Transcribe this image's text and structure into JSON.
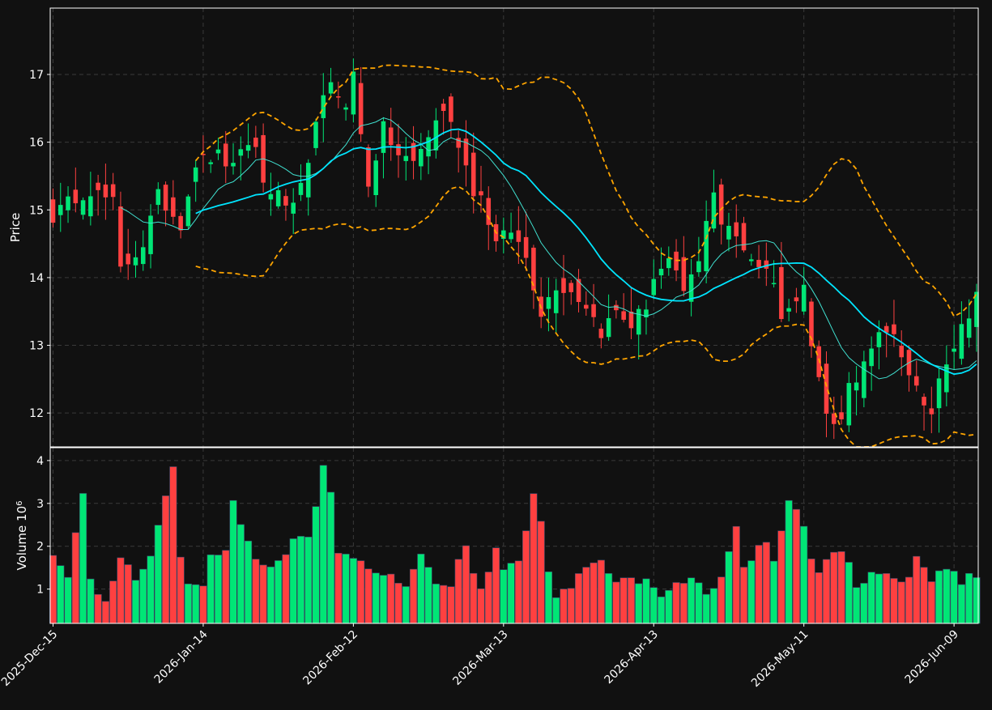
{
  "chart_data": {
    "type": "candlestick",
    "style": {
      "background": "#111111",
      "up_color": "#00e676",
      "down_color": "#ff4040",
      "grid_color": "#3a3a3a",
      "bollinger_color": "#ffa500",
      "ma_fast_color": "#40e0d0",
      "ma_slow_color": "#00e5ff",
      "grid": true
    },
    "price_panel": {
      "ylabel": "Price",
      "ylim": [
        11.5,
        17.98
      ],
      "yticks": [
        12,
        13,
        14,
        15,
        16,
        17
      ]
    },
    "volume_panel": {
      "ylabel": "Volume",
      "ylabel_exponent": "10",
      "ylabel_exponent_power": "6",
      "ylim": [
        0.2,
        4.3
      ],
      "yticks": [
        1,
        2,
        3,
        4
      ]
    },
    "xtick_labels": [
      "2025-Dec-15",
      "2026-Jan-14",
      "2026-Feb-12",
      "2026-Mar-13",
      "2026-Apr-13",
      "2026-May-11",
      "2026-Jun-09"
    ],
    "xtick_indices": [
      0,
      20,
      40,
      60,
      80,
      100,
      120
    ],
    "n_bars": 124,
    "close_anchors": [
      [
        0,
        14.9
      ],
      [
        3,
        15.2
      ],
      [
        5,
        15.3
      ],
      [
        8,
        15.1
      ],
      [
        9,
        14.1
      ],
      [
        12,
        14.5
      ],
      [
        14,
        15.2
      ],
      [
        17,
        14.8
      ],
      [
        19,
        15.7
      ],
      [
        22,
        15.8
      ],
      [
        24,
        15.6
      ],
      [
        26,
        16.0
      ],
      [
        27,
        15.9
      ],
      [
        28,
        15.4
      ],
      [
        30,
        15.2
      ],
      [
        32,
        15.0
      ],
      [
        34,
        15.6
      ],
      [
        35,
        16.4
      ],
      [
        37,
        16.8
      ],
      [
        39,
        16.6
      ],
      [
        40,
        17.0
      ],
      [
        41,
        16.1
      ],
      [
        42,
        15.4
      ],
      [
        44,
        16.2
      ],
      [
        46,
        15.8
      ],
      [
        48,
        15.7
      ],
      [
        50,
        16.1
      ],
      [
        52,
        16.5
      ],
      [
        54,
        16.0
      ],
      [
        56,
        15.3
      ],
      [
        57,
        15.2
      ],
      [
        59,
        14.5
      ],
      [
        61,
        14.7
      ],
      [
        63,
        14.3
      ],
      [
        65,
        13.5
      ],
      [
        67,
        13.9
      ],
      [
        69,
        13.8
      ],
      [
        71,
        13.6
      ],
      [
        73,
        13.2
      ],
      [
        75,
        13.5
      ],
      [
        77,
        13.3
      ],
      [
        79,
        13.6
      ],
      [
        80,
        14.0
      ],
      [
        82,
        14.2
      ],
      [
        84,
        13.8
      ],
      [
        86,
        14.2
      ],
      [
        87,
        14.9
      ],
      [
        88,
        15.3
      ],
      [
        89,
        14.8
      ],
      [
        91,
        14.6
      ],
      [
        93,
        14.3
      ],
      [
        95,
        14.1
      ],
      [
        96,
        14.0
      ],
      [
        97,
        13.4
      ],
      [
        98,
        13.5
      ],
      [
        100,
        14.0
      ],
      [
        101,
        13.0
      ],
      [
        102,
        12.5
      ],
      [
        103,
        12.0
      ],
      [
        104,
        11.8
      ],
      [
        105,
        12.0
      ],
      [
        106,
        12.4
      ],
      [
        108,
        12.7
      ],
      [
        110,
        13.1
      ],
      [
        112,
        13.2
      ],
      [
        113,
        12.9
      ],
      [
        114,
        12.5
      ],
      [
        115,
        12.3
      ],
      [
        117,
        12.0
      ],
      [
        118,
        12.6
      ],
      [
        120,
        13.0
      ],
      [
        122,
        13.5
      ],
      [
        123,
        13.8
      ]
    ],
    "volume_anchors": [
      [
        0,
        1.8
      ],
      [
        2,
        1.3
      ],
      [
        4,
        3.3
      ],
      [
        5,
        1.2
      ],
      [
        7,
        0.65
      ],
      [
        9,
        1.75
      ],
      [
        11,
        1.25
      ],
      [
        13,
        1.8
      ],
      [
        16,
        3.9
      ],
      [
        17,
        1.7
      ],
      [
        18,
        1.1
      ],
      [
        20,
        1.1
      ],
      [
        21,
        1.8
      ],
      [
        23,
        1.85
      ],
      [
        24,
        3.0
      ],
      [
        27,
        1.65
      ],
      [
        29,
        1.55
      ],
      [
        31,
        1.85
      ],
      [
        32,
        2.25
      ],
      [
        34,
        2.15
      ],
      [
        35,
        2.9
      ],
      [
        36,
        3.85
      ],
      [
        37,
        3.2
      ],
      [
        38,
        1.9
      ],
      [
        40,
        1.75
      ],
      [
        42,
        1.45
      ],
      [
        45,
        1.35
      ],
      [
        47,
        1.0
      ],
      [
        49,
        1.8
      ],
      [
        51,
        1.15
      ],
      [
        53,
        1.05
      ],
      [
        54,
        1.65
      ],
      [
        55,
        1.95
      ],
      [
        56,
        1.3
      ],
      [
        57,
        1.0
      ],
      [
        59,
        1.9
      ],
      [
        60,
        1.5
      ],
      [
        62,
        1.6
      ],
      [
        64,
        3.2
      ],
      [
        65,
        2.6
      ],
      [
        66,
        1.4
      ],
      [
        67,
        0.85
      ],
      [
        69,
        1.05
      ],
      [
        71,
        1.55
      ],
      [
        73,
        1.65
      ],
      [
        75,
        1.2
      ],
      [
        77,
        1.2
      ],
      [
        79,
        1.2
      ],
      [
        81,
        0.8
      ],
      [
        83,
        1.1
      ],
      [
        85,
        1.25
      ],
      [
        87,
        0.9
      ],
      [
        89,
        1.25
      ],
      [
        91,
        2.4
      ],
      [
        92,
        1.45
      ],
      [
        94,
        2.0
      ],
      [
        95,
        2.05
      ],
      [
        96,
        1.65
      ],
      [
        98,
        3.0
      ],
      [
        99,
        2.8
      ],
      [
        100,
        2.4
      ],
      [
        101,
        1.65
      ],
      [
        102,
        1.35
      ],
      [
        103,
        1.75
      ],
      [
        105,
        1.9
      ],
      [
        106,
        1.6
      ],
      [
        107,
        1.05
      ],
      [
        109,
        1.35
      ],
      [
        111,
        1.4
      ],
      [
        113,
        1.15
      ],
      [
        114,
        1.25
      ],
      [
        115,
        1.8
      ],
      [
        116,
        1.55
      ],
      [
        117,
        1.15
      ],
      [
        118,
        1.45
      ],
      [
        120,
        1.35
      ],
      [
        121,
        1.1
      ],
      [
        122,
        1.35
      ],
      [
        123,
        1.2
      ]
    ]
  }
}
